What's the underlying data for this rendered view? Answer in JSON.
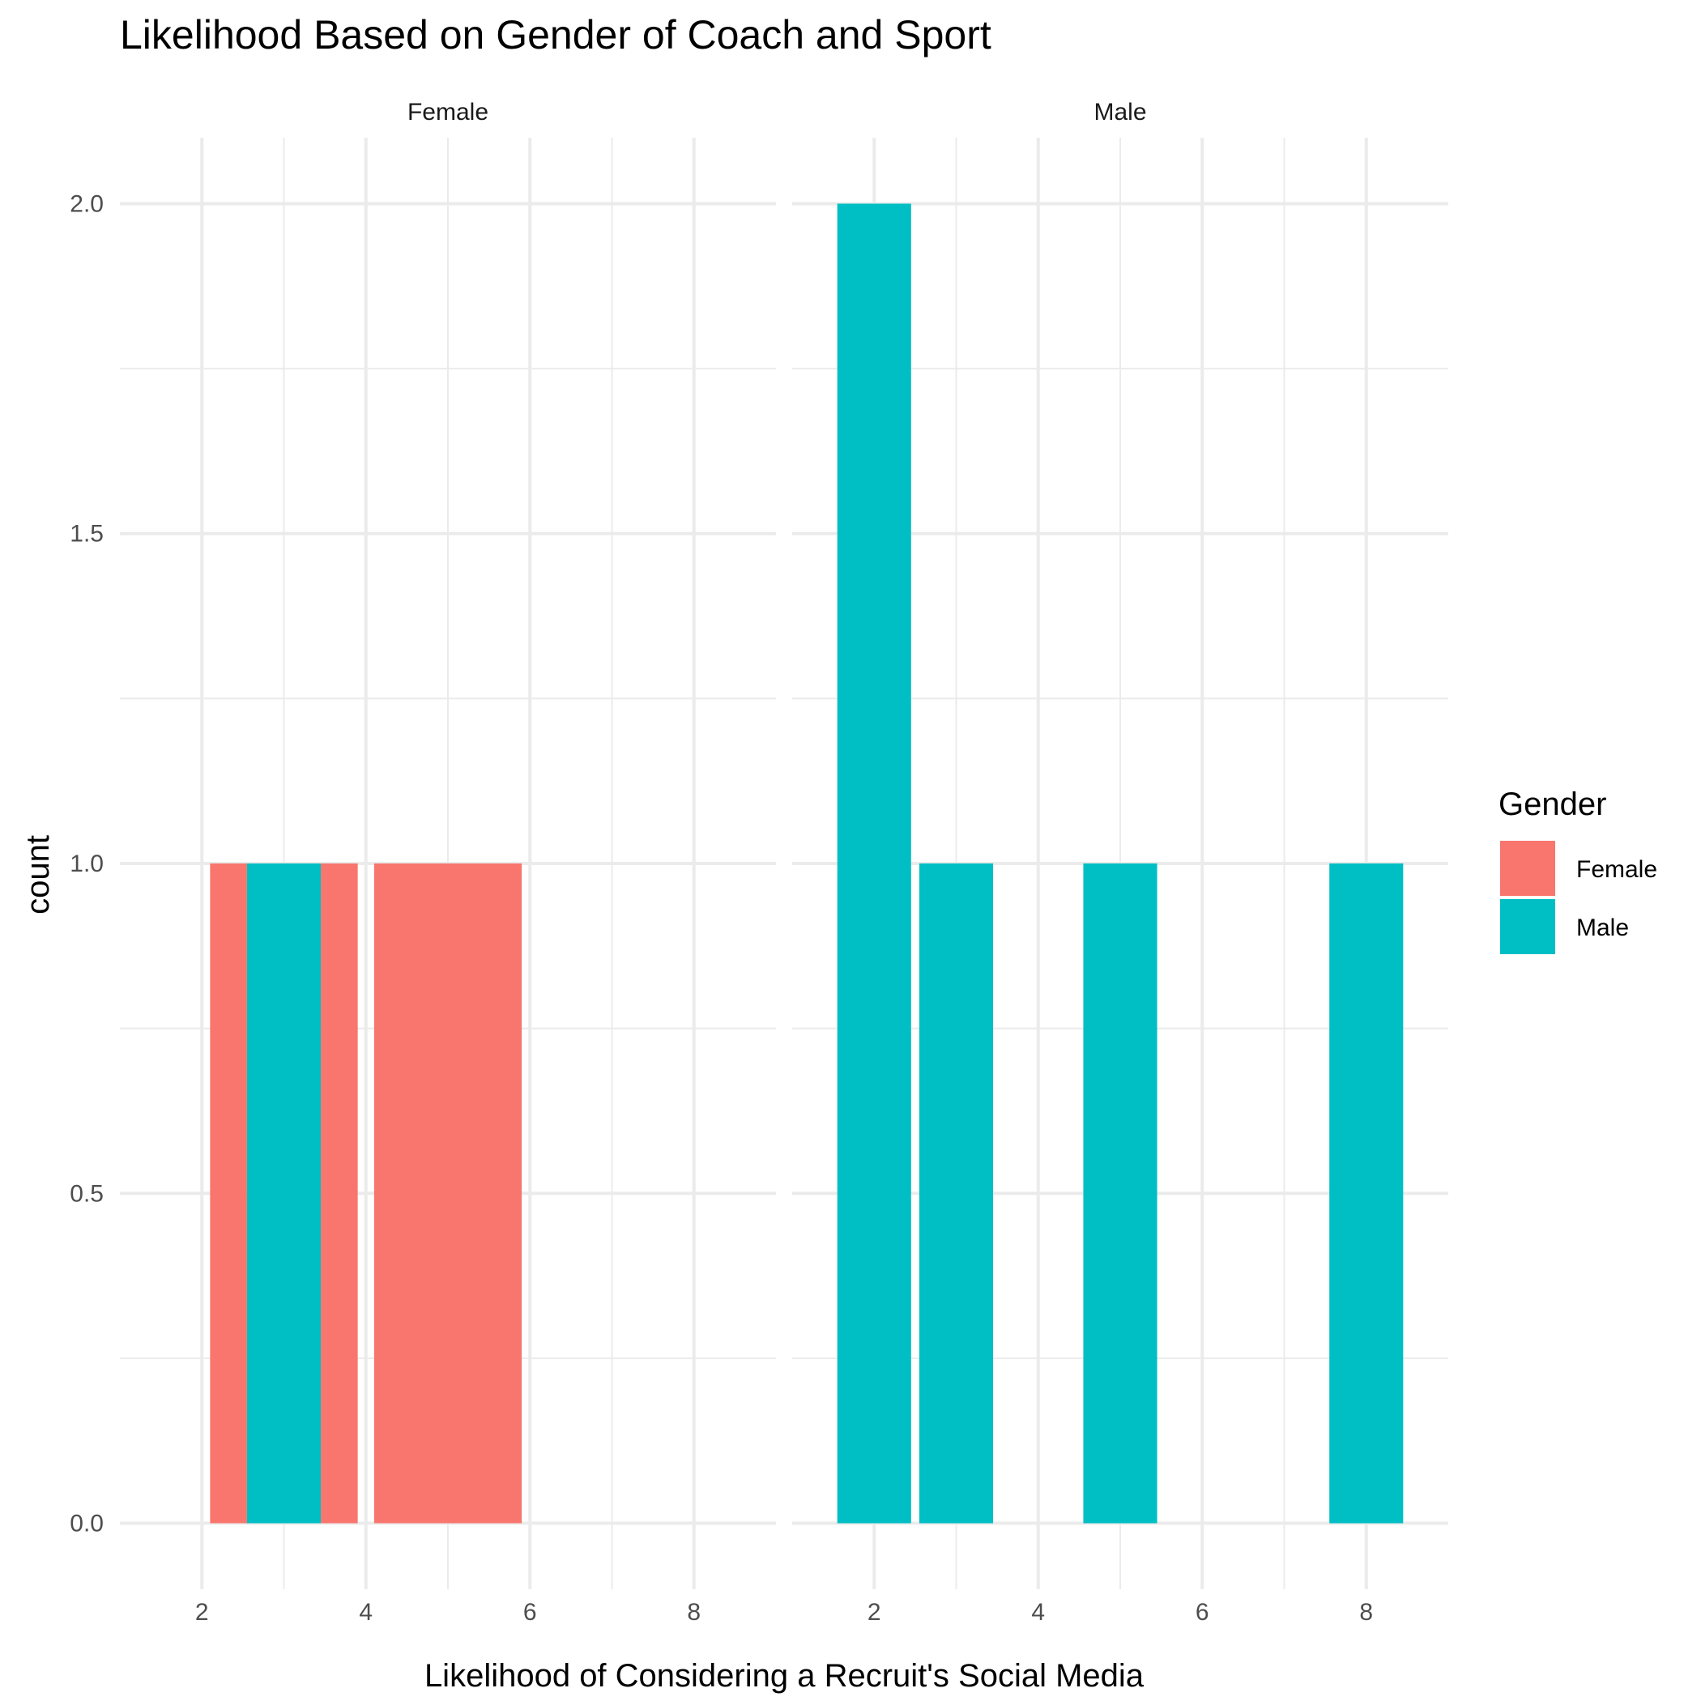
{
  "chart_data": {
    "type": "bar",
    "title": "Likelihood Based on Gender of Coach and Sport",
    "xlabel": "Likelihood of Considering a Recruit's Social Media",
    "ylabel": "count",
    "xlim": [
      1,
      9
    ],
    "ylim": [
      -0.1,
      2.1
    ],
    "x_ticks": [
      "2",
      "4",
      "6",
      "8"
    ],
    "y_ticks": [
      "0.0",
      "0.5",
      "1.0",
      "1.5",
      "2.0"
    ],
    "grid": true,
    "legend": {
      "title": "Gender",
      "position": "right",
      "entries": [
        {
          "name": "Female",
          "color": "#F8766D"
        },
        {
          "name": "Male",
          "color": "#00BFC4"
        }
      ]
    },
    "panels": [
      {
        "label": "Female",
        "bars": [
          {
            "x0": 2.1,
            "x1": 2.55,
            "count": 1,
            "group": "Female"
          },
          {
            "x0": 2.55,
            "x1": 3.45,
            "count": 1,
            "group": "Male"
          },
          {
            "x0": 3.45,
            "x1": 3.9,
            "count": 1,
            "group": "Female"
          },
          {
            "x0": 4.1,
            "x1": 5.9,
            "count": 1,
            "group": "Female"
          }
        ]
      },
      {
        "label": "Male",
        "bars": [
          {
            "x0": 1.55,
            "x1": 2.45,
            "count": 2,
            "group": "Male"
          },
          {
            "x0": 2.55,
            "x1": 3.45,
            "count": 1,
            "group": "Male"
          },
          {
            "x0": 4.55,
            "x1": 5.45,
            "count": 1,
            "group": "Male"
          },
          {
            "x0": 7.55,
            "x1": 8.45,
            "count": 1,
            "group": "Male"
          }
        ]
      }
    ]
  }
}
